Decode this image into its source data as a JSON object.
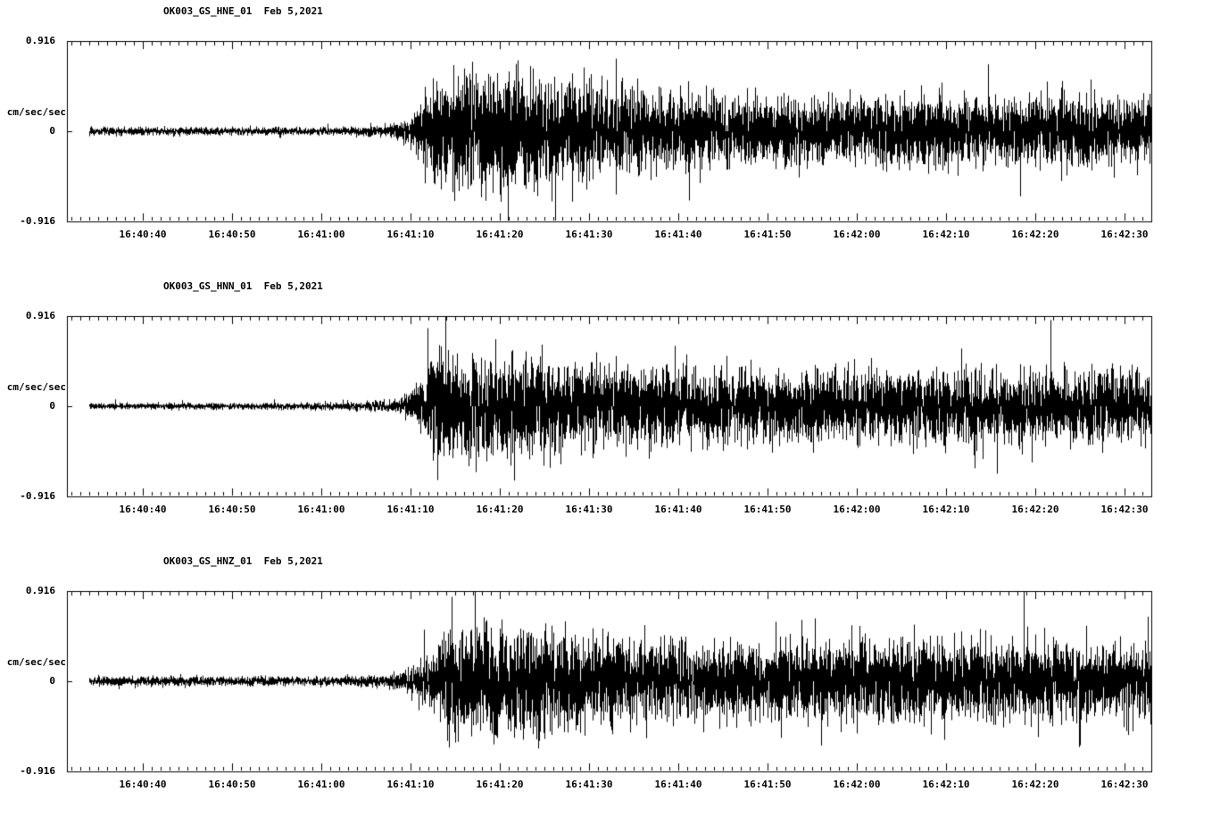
{
  "page": {
    "background": "#ffffff",
    "foreground": "#000000"
  },
  "chart_data": [
    {
      "type": "line",
      "title": "OK003_GS_HNE_01  Feb 5,2021",
      "ylabel": "cm/sec/sec",
      "ylim": [
        -0.916,
        0.916
      ],
      "y_axis": {
        "max_label": "0.916",
        "zero_label": "0",
        "min_label": "-0.916"
      },
      "x_axis": {
        "labels": [
          "16:40:40",
          "16:40:50",
          "16:41:00",
          "16:41:10",
          "16:41:20",
          "16:41:30",
          "16:41:40",
          "16:41:50",
          "16:42:00",
          "16:42:10",
          "16:42:20",
          "16:42:30"
        ],
        "first_tick_offset_s": 8.5,
        "interval_s": 10,
        "minor_interval_s": 1,
        "window_s": 121.5
      },
      "quiet_amplitude": 0.033,
      "onset_time": "16:41:08",
      "peak_amplitude": 0.72,
      "peak_time": "16:41:18",
      "coda_amplitude": 0.3,
      "envelope": [
        [
          0,
          0.033
        ],
        [
          30,
          0.033
        ],
        [
          34,
          0.04
        ],
        [
          36.5,
          0.06
        ],
        [
          38.5,
          0.13
        ],
        [
          40.5,
          0.38
        ],
        [
          43,
          0.52
        ],
        [
          47,
          0.52
        ],
        [
          52,
          0.46
        ],
        [
          57,
          0.4
        ],
        [
          63,
          0.34
        ],
        [
          72,
          0.29
        ],
        [
          85,
          0.27
        ],
        [
          95,
          0.3
        ],
        [
          105,
          0.28
        ],
        [
          115,
          0.3
        ],
        [
          121.5,
          0.29
        ]
      ]
    },
    {
      "type": "line",
      "title": "OK003_GS_HNN_01  Feb 5,2021",
      "ylabel": "cm/sec/sec",
      "ylim": [
        -0.916,
        0.916
      ],
      "y_axis": {
        "max_label": "0.916",
        "zero_label": "0",
        "min_label": "-0.916"
      },
      "x_axis": {
        "labels": [
          "16:40:40",
          "16:40:50",
          "16:41:00",
          "16:41:10",
          "16:41:20",
          "16:41:30",
          "16:41:40",
          "16:41:50",
          "16:42:00",
          "16:42:10",
          "16:42:20",
          "16:42:30"
        ],
        "first_tick_offset_s": 8.5,
        "interval_s": 10,
        "minor_interval_s": 1,
        "window_s": 121.5
      },
      "quiet_amplitude": 0.025,
      "onset_time": "16:41:08",
      "peak_amplitude": 0.7,
      "peak_time": "16:41:13",
      "coda_amplitude": 0.3,
      "envelope": [
        [
          0,
          0.025
        ],
        [
          25,
          0.028
        ],
        [
          33,
          0.035
        ],
        [
          36.5,
          0.05
        ],
        [
          38.5,
          0.1
        ],
        [
          40.5,
          0.3
        ],
        [
          41.5,
          0.58
        ],
        [
          43,
          0.44
        ],
        [
          48,
          0.42
        ],
        [
          53,
          0.4
        ],
        [
          58,
          0.36
        ],
        [
          65,
          0.33
        ],
        [
          75,
          0.3
        ],
        [
          90,
          0.3
        ],
        [
          105,
          0.31
        ],
        [
          121.5,
          0.3
        ]
      ]
    },
    {
      "type": "line",
      "title": "OK003_GS_HNZ_01  Feb 5,2021",
      "ylabel": "cm/sec/sec",
      "ylim": [
        -0.916,
        0.916
      ],
      "y_axis": {
        "max_label": "0.916",
        "zero_label": "0",
        "min_label": "-0.916"
      },
      "x_axis": {
        "labels": [
          "16:40:40",
          "16:40:50",
          "16:41:00",
          "16:41:10",
          "16:41:20",
          "16:41:30",
          "16:41:40",
          "16:41:50",
          "16:42:00",
          "16:42:10",
          "16:42:20",
          "16:42:30"
        ],
        "first_tick_offset_s": 8.5,
        "interval_s": 10,
        "minor_interval_s": 1,
        "window_s": 121.5
      },
      "quiet_amplitude": 0.04,
      "onset_time": "16:41:08",
      "peak_amplitude": 0.68,
      "peak_time": "16:41:22",
      "coda_amplitude": 0.33,
      "envelope": [
        [
          0,
          0.04
        ],
        [
          30,
          0.04
        ],
        [
          35,
          0.05
        ],
        [
          38,
          0.09
        ],
        [
          40.5,
          0.25
        ],
        [
          43,
          0.42
        ],
        [
          48,
          0.45
        ],
        [
          52,
          0.46
        ],
        [
          56,
          0.42
        ],
        [
          62,
          0.38
        ],
        [
          70,
          0.33
        ],
        [
          80,
          0.32
        ],
        [
          90,
          0.35
        ],
        [
          100,
          0.34
        ],
        [
          110,
          0.33
        ],
        [
          121.5,
          0.33
        ]
      ]
    }
  ]
}
